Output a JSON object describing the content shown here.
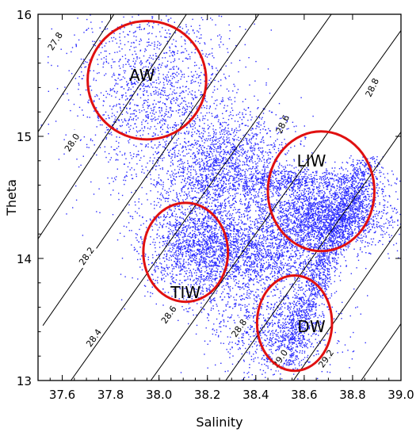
{
  "chart_data": {
    "type": "scatter",
    "title": "",
    "xlabel": "Salinity",
    "ylabel": "Theta",
    "xlim": [
      37.5,
      39.0
    ],
    "ylim": [
      13.0,
      16.0
    ],
    "grid": false,
    "legend": "none",
    "xticks": [
      37.6,
      37.8,
      38.0,
      38.2,
      38.4,
      38.6,
      38.8,
      39.0
    ],
    "xtick_labels": [
      "37.6",
      "37.8",
      "38.0",
      "38.2",
      "38.4",
      "38.6",
      "38.8",
      "39.0"
    ],
    "yticks": [
      13,
      14,
      15,
      16
    ],
    "ytick_labels": [
      "13",
      "14",
      "15",
      "16"
    ],
    "colors": {
      "points": "#2b2bff",
      "circles": "#e01010",
      "contours": "#000000"
    },
    "density_contours": [
      {
        "label": "27.8",
        "points": [
          [
            37.42,
            14.79
          ],
          [
            37.83,
            16.05
          ]
        ],
        "label_at": [
          37.57,
          15.78
        ]
      },
      {
        "label": "28.0",
        "points": [
          [
            37.48,
            14.1
          ],
          [
            38.13,
            16.05
          ]
        ],
        "label_at": [
          37.64,
          14.95
        ]
      },
      {
        "label": "28.2",
        "points": [
          [
            37.52,
            13.45
          ],
          [
            38.43,
            16.05
          ]
        ],
        "label_at": [
          37.7,
          14.02
        ]
      },
      {
        "label": "28.4",
        "points": [
          [
            37.6,
            12.9
          ],
          [
            38.73,
            16.05
          ]
        ],
        "label_at": [
          37.73,
          13.35
        ]
      },
      {
        "label": "28.6",
        "points": [
          [
            37.93,
            12.9
          ],
          [
            39.03,
            15.95
          ]
        ],
        "label_at": [
          38.04,
          13.54
        ]
      },
      {
        "label": "28.8",
        "points": [
          [
            38.24,
            12.9
          ],
          [
            39.03,
            15.12
          ]
        ],
        "label_at": [
          38.33,
          13.43
        ]
      },
      {
        "label": "29.0",
        "points": [
          [
            38.52,
            12.9
          ],
          [
            39.03,
            14.35
          ]
        ],
        "label_at": [
          38.5,
          13.18
        ]
      },
      {
        "label": "29.2",
        "points": [
          [
            38.8,
            12.9
          ],
          [
            39.03,
            13.55
          ]
        ],
        "label_at": [
          38.69,
          13.18
        ]
      }
    ],
    "inline_contour_labels": [
      {
        "label": "28.6",
        "at": [
          38.51,
          15.1
        ]
      },
      {
        "label": "28.8",
        "at": [
          38.88,
          15.4
        ]
      }
    ],
    "water_masses": [
      {
        "label": "AW",
        "center": [
          37.95,
          15.46
        ],
        "rx": 0.245,
        "ry": 0.485,
        "label_at": [
          37.93,
          15.5
        ]
      },
      {
        "label": "LIW",
        "center": [
          38.67,
          14.55
        ],
        "rx": 0.22,
        "ry": 0.49,
        "label_at": [
          38.63,
          14.8
        ]
      },
      {
        "label": "TIW",
        "center": [
          38.11,
          14.05
        ],
        "rx": 0.175,
        "ry": 0.405,
        "label_at": [
          38.11,
          13.72
        ]
      },
      {
        "label": "DW",
        "center": [
          38.56,
          13.47
        ],
        "rx": 0.155,
        "ry": 0.39,
        "label_at": [
          38.63,
          13.44
        ]
      }
    ],
    "point_clusters": [
      {
        "name": "AW cloud",
        "center": [
          37.98,
          15.35
        ],
        "spread": [
          0.17,
          0.42
        ],
        "count": 1700
      },
      {
        "name": "transition band",
        "center": [
          38.28,
          14.78
        ],
        "spread": [
          0.13,
          0.22
        ],
        "count": 1500
      },
      {
        "name": "LIW core",
        "center": [
          38.68,
          14.35
        ],
        "spread": [
          0.14,
          0.14
        ],
        "count": 2300
      },
      {
        "name": "LIW upper band",
        "center": [
          38.55,
          14.65
        ],
        "spread": [
          0.2,
          0.05
        ],
        "count": 700
      },
      {
        "name": "TIW cloud",
        "center": [
          38.17,
          14.12
        ],
        "spread": [
          0.12,
          0.22
        ],
        "count": 1800
      },
      {
        "name": "intermediate",
        "center": [
          38.42,
          14.02
        ],
        "spread": [
          0.15,
          0.16
        ],
        "count": 1400
      },
      {
        "name": "DW tail",
        "center": [
          38.47,
          13.42
        ],
        "spread": [
          0.13,
          0.18
        ],
        "count": 900
      }
    ],
    "deep_branch": {
      "from": [
        38.5,
        13.12
      ],
      "to": [
        38.86,
        14.82
      ],
      "width": 0.035,
      "count": 1500
    }
  }
}
